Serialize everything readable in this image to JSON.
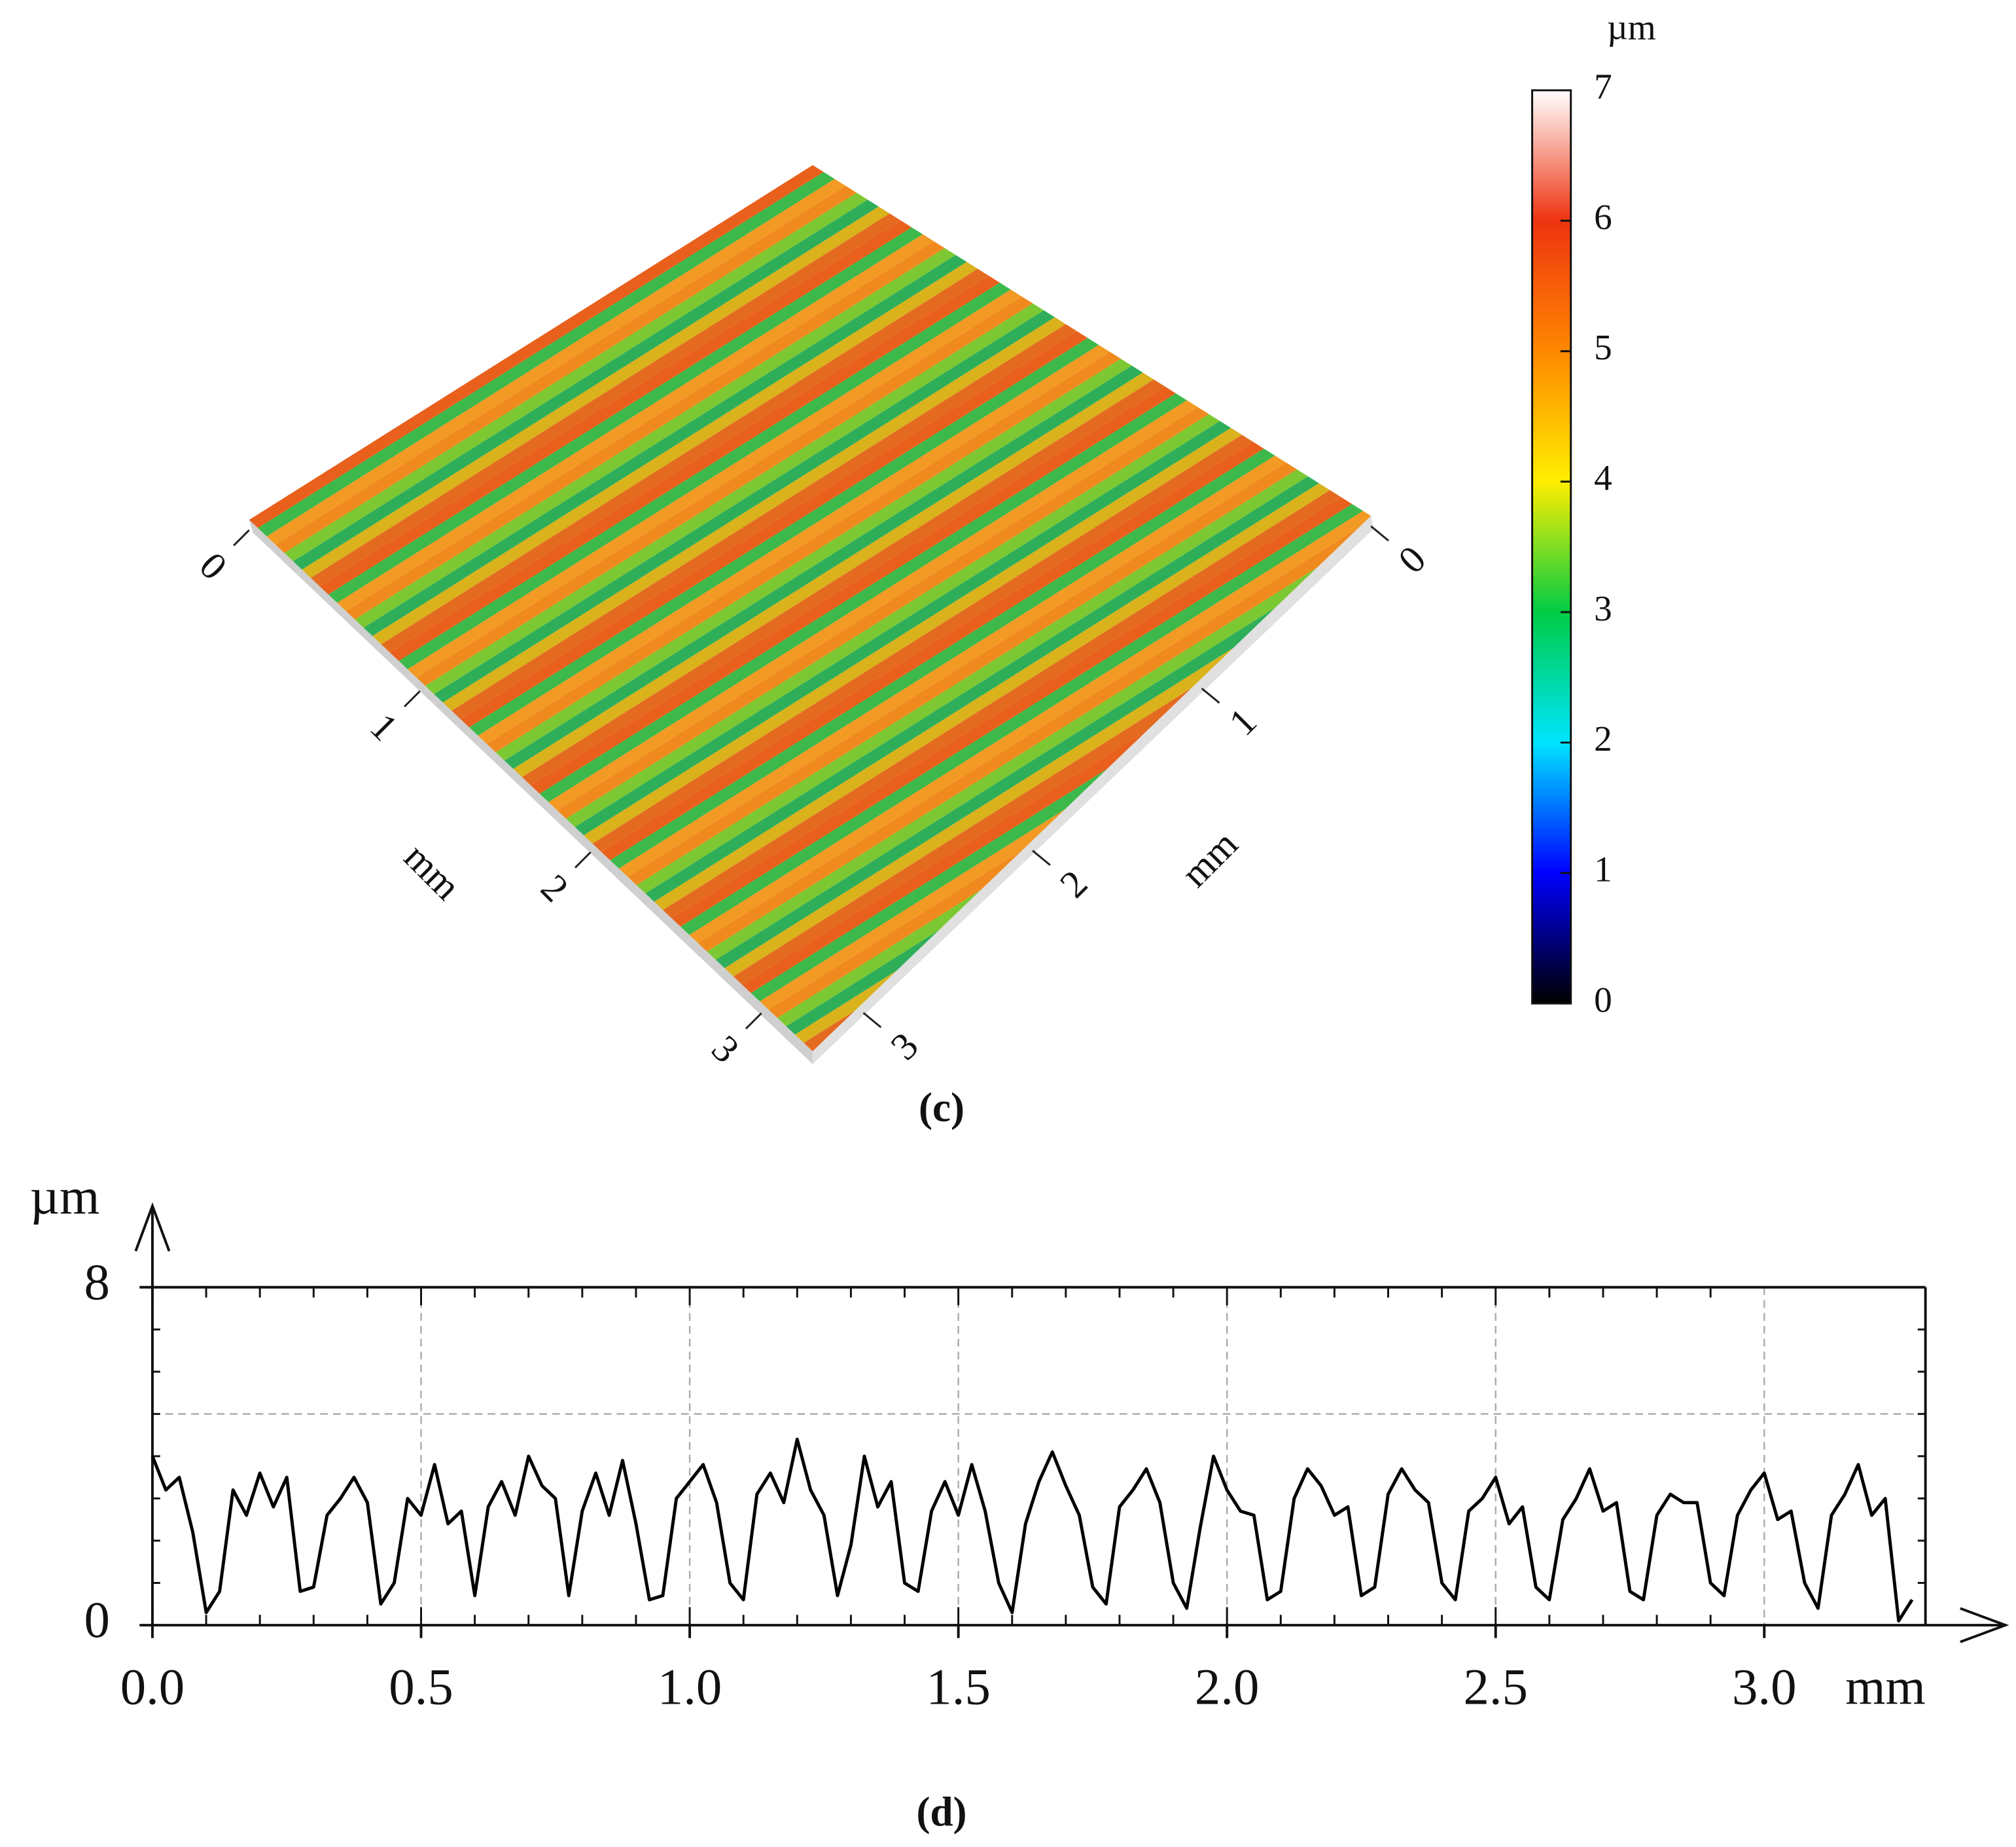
{
  "chart_data": [
    {
      "type": "surface",
      "caption": "(c)",
      "xticks": [
        0,
        1,
        2,
        3
      ],
      "yticks": [
        0,
        1,
        2,
        3
      ],
      "xlim": [
        0,
        3.3
      ],
      "ylim": [
        0,
        3.3
      ],
      "xlabel": "mm",
      "ylabel": "mm",
      "colorbar_label": "µm",
      "colorbar_lim": [
        0,
        7
      ],
      "colorbar_ticks": [
        0,
        1,
        2,
        3,
        4,
        5,
        6,
        7
      ],
      "colorbar_colors": [
        "#000000",
        "#0000ff",
        "#00e5ff",
        "#00cc44",
        "#ffee00",
        "#ff8800",
        "#ee3311",
        "#ffffff"
      ]
    },
    {
      "type": "line",
      "caption": "(d)",
      "ylabel": "µm",
      "xlabel": "mm",
      "color": "#000000",
      "xlim": [
        0,
        3.3
      ],
      "ylim": [
        0,
        8
      ],
      "xticks": [
        {
          "value": 0,
          "label": "0.0"
        },
        {
          "value": 0.5,
          "label": "0.5"
        },
        {
          "value": 1,
          "label": "1.0"
        },
        {
          "value": 1.5,
          "label": "1.5"
        },
        {
          "value": 2,
          "label": "2.0"
        },
        {
          "value": 2.5,
          "label": "2.5"
        },
        {
          "value": 3,
          "label": "3.0"
        }
      ],
      "yticks": [
        0,
        8
      ],
      "ygrid": [
        5
      ],
      "grid": true,
      "x": [
        0,
        0.025,
        0.05,
        0.075,
        0.1,
        0.125,
        0.15,
        0.175,
        0.2,
        0.225,
        0.25,
        0.275,
        0.3,
        0.325,
        0.35,
        0.375,
        0.4,
        0.425,
        0.45,
        0.475,
        0.5,
        0.525,
        0.55,
        0.575,
        0.6,
        0.625,
        0.65,
        0.675,
        0.7,
        0.725,
        0.75,
        0.775,
        0.8,
        0.825,
        0.85,
        0.875,
        0.9,
        0.925,
        0.95,
        0.975,
        1,
        1.025,
        1.05,
        1.075,
        1.1,
        1.125,
        1.15,
        1.175,
        1.2,
        1.225,
        1.25,
        1.275,
        1.3,
        1.325,
        1.35,
        1.375,
        1.4,
        1.425,
        1.45,
        1.475,
        1.5,
        1.525,
        1.55,
        1.575,
        1.6,
        1.625,
        1.65,
        1.675,
        1.7,
        1.725,
        1.75,
        1.775,
        1.8,
        1.825,
        1.85,
        1.875,
        1.9,
        1.925,
        1.95,
        1.975,
        2,
        2.025,
        2.05,
        2.075,
        2.1,
        2.125,
        2.15,
        2.175,
        2.2,
        2.225,
        2.25,
        2.275,
        2.3,
        2.325,
        2.35,
        2.375,
        2.4,
        2.425,
        2.45,
        2.475,
        2.5,
        2.525,
        2.55,
        2.575,
        2.6,
        2.625,
        2.65,
        2.675,
        2.7,
        2.725,
        2.75,
        2.775,
        2.8,
        2.825,
        2.85,
        2.875,
        2.9,
        2.925,
        2.95,
        2.975,
        3,
        3.025,
        3.05,
        3.075,
        3.1,
        3.125,
        3.15,
        3.175,
        3.2,
        3.225,
        3.25,
        3.275
      ],
      "values": [
        4.0,
        3.2,
        3.5,
        2.2,
        0.3,
        0.8,
        3.2,
        2.6,
        3.6,
        2.8,
        3.5,
        0.8,
        0.9,
        2.6,
        3.0,
        3.5,
        2.9,
        0.5,
        1.0,
        3.0,
        2.6,
        3.8,
        2.4,
        2.7,
        0.7,
        2.8,
        3.4,
        2.6,
        4.0,
        3.3,
        3.0,
        0.7,
        2.7,
        3.6,
        2.6,
        3.9,
        2.4,
        0.6,
        0.7,
        3.0,
        3.4,
        3.8,
        2.9,
        1.0,
        0.6,
        3.1,
        3.6,
        2.9,
        4.4,
        3.2,
        2.6,
        0.7,
        1.9,
        4.0,
        2.8,
        3.4,
        1.0,
        0.8,
        2.7,
        3.4,
        2.6,
        3.8,
        2.7,
        1.0,
        0.3,
        2.4,
        3.4,
        4.1,
        3.3,
        2.6,
        0.9,
        0.5,
        2.8,
        3.2,
        3.7,
        2.9,
        1.0,
        0.4,
        2.3,
        4.0,
        3.2,
        2.7,
        2.6,
        0.6,
        0.8,
        3.0,
        3.7,
        3.3,
        2.6,
        2.8,
        0.7,
        0.9,
        3.1,
        3.7,
        3.2,
        2.9,
        1.0,
        0.6,
        2.7,
        3.0,
        3.5,
        2.4,
        2.8,
        0.9,
        0.6,
        2.5,
        3.0,
        3.7,
        2.7,
        2.9,
        0.8,
        0.6,
        2.6,
        3.1,
        2.9,
        2.9,
        1.0,
        0.7,
        2.6,
        3.2,
        3.6,
        2.5,
        2.7,
        1.0,
        0.4,
        2.6,
        3.1,
        3.8,
        2.6,
        3.0,
        0.1,
        0.6
      ]
    }
  ]
}
